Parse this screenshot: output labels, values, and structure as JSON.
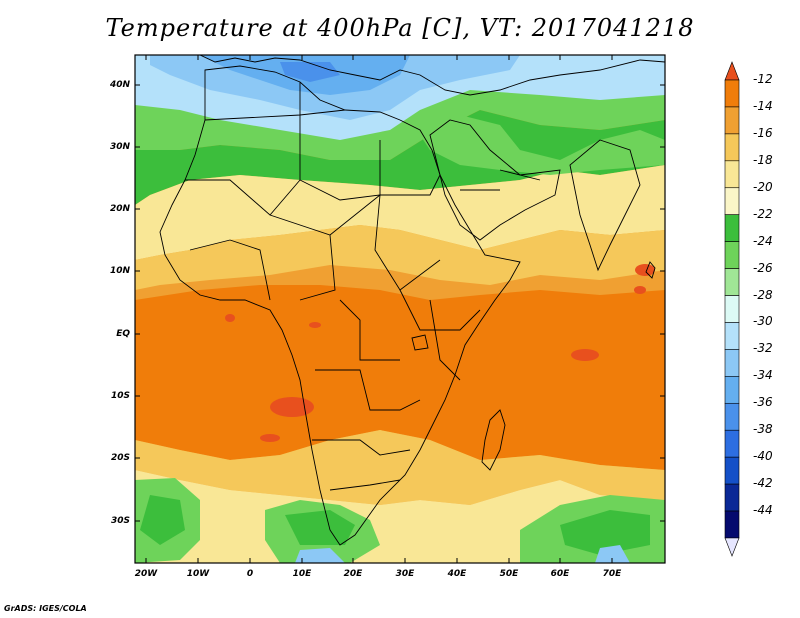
{
  "title": "Temperature at 400hPa [C], VT: 2017041218",
  "lat_labels": [
    "40N",
    "30N",
    "20N",
    "10N",
    "EQ",
    "10S",
    "20S",
    "30S"
  ],
  "lon_labels": [
    "20W",
    "10W",
    "0",
    "10E",
    "20E",
    "30E",
    "40E",
    "50E",
    "60E",
    "70E"
  ],
  "colorbar": {
    "labels": [
      "-12",
      "-14",
      "-16",
      "-18",
      "-20",
      "-22",
      "-24",
      "-26",
      "-28",
      "-30",
      "-32",
      "-34",
      "-36",
      "-38",
      "-40",
      "-42",
      "-44"
    ],
    "colors": [
      "#e8501e",
      "#f07d0a",
      "#f0a032",
      "#f5c85a",
      "#f9e796",
      "#fbf6c8",
      "#3cbe3c",
      "#6ed35a",
      "#a0e696",
      "#dcfaf5",
      "#b4e1fa",
      "#8cc8f5",
      "#64aff0",
      "#4a91eb",
      "#2d6ee1",
      "#1450c8",
      "#0a2896",
      "#050a6e",
      "#e6e6ff"
    ],
    "top_arrow_color": "#e8501e",
    "bottom_arrow_color": "#e6e6ff"
  },
  "footer": "GrADS: IGES/COLA"
}
